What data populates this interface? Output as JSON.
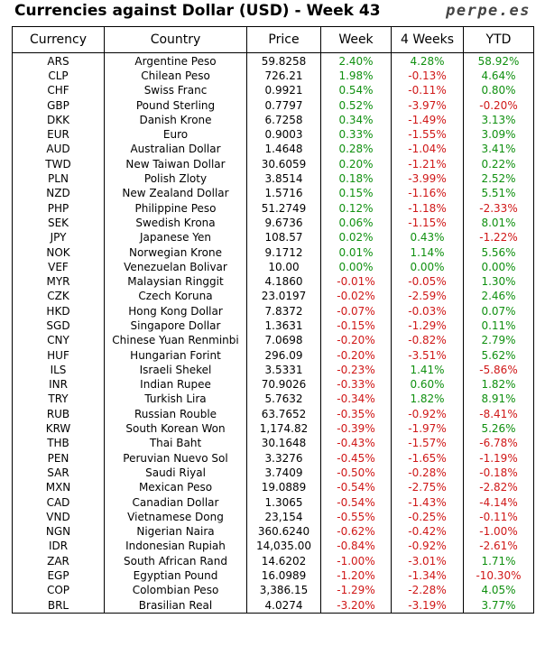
{
  "header": {
    "title": "Currencies against Dollar (USD) - Week 43",
    "brand": "perpe.es"
  },
  "columns": [
    "Currency",
    "Country",
    "Price",
    "Week",
    "4 Weeks",
    "YTD"
  ],
  "rows": [
    [
      "ARS",
      "Argentine Peso",
      "59.8258",
      "2.40%",
      "4.28%",
      "58.92%"
    ],
    [
      "CLP",
      "Chilean Peso",
      "726.21",
      "1.98%",
      "-0.13%",
      "4.64%"
    ],
    [
      "CHF",
      "Swiss Franc",
      "0.9921",
      "0.54%",
      "-0.11%",
      "0.80%"
    ],
    [
      "GBP",
      "Pound Sterling",
      "0.7797",
      "0.52%",
      "-3.97%",
      "-0.20%"
    ],
    [
      "DKK",
      "Danish Krone",
      "6.7258",
      "0.34%",
      "-1.49%",
      "3.13%"
    ],
    [
      "EUR",
      "Euro",
      "0.9003",
      "0.33%",
      "-1.55%",
      "3.09%"
    ],
    [
      "AUD",
      "Australian Dollar",
      "1.4648",
      "0.28%",
      "-1.04%",
      "3.41%"
    ],
    [
      "TWD",
      "New Taiwan Dollar",
      "30.6059",
      "0.20%",
      "-1.21%",
      "0.22%"
    ],
    [
      "PLN",
      "Polish Zloty",
      "3.8514",
      "0.18%",
      "-3.99%",
      "2.52%"
    ],
    [
      "NZD",
      "New Zealand Dollar",
      "1.5716",
      "0.15%",
      "-1.16%",
      "5.51%"
    ],
    [
      "PHP",
      "Philippine Peso",
      "51.2749",
      "0.12%",
      "-1.18%",
      "-2.33%"
    ],
    [
      "SEK",
      "Swedish Krona",
      "9.6736",
      "0.06%",
      "-1.15%",
      "8.01%"
    ],
    [
      "JPY",
      "Japanese Yen",
      "108.57",
      "0.02%",
      "0.43%",
      "-1.22%"
    ],
    [
      "NOK",
      "Norwegian Krone",
      "9.1712",
      "0.01%",
      "1.14%",
      "5.56%"
    ],
    [
      "VEF",
      "Venezuelan Bolivar",
      "10.00",
      "0.00%",
      "0.00%",
      "0.00%"
    ],
    [
      "MYR",
      "Malaysian Ringgit",
      "4.1860",
      "-0.01%",
      "-0.05%",
      "1.30%"
    ],
    [
      "CZK",
      "Czech Koruna",
      "23.0197",
      "-0.02%",
      "-2.59%",
      "2.46%"
    ],
    [
      "HKD",
      "Hong Kong Dollar",
      "7.8372",
      "-0.07%",
      "-0.03%",
      "0.07%"
    ],
    [
      "SGD",
      "Singapore Dollar",
      "1.3631",
      "-0.15%",
      "-1.29%",
      "0.11%"
    ],
    [
      "CNY",
      "Chinese Yuan Renminbi",
      "7.0698",
      "-0.20%",
      "-0.82%",
      "2.79%"
    ],
    [
      "HUF",
      "Hungarian Forint",
      "296.09",
      "-0.20%",
      "-3.51%",
      "5.62%"
    ],
    [
      "ILS",
      "Israeli Shekel",
      "3.5331",
      "-0.23%",
      "1.41%",
      "-5.86%"
    ],
    [
      "INR",
      "Indian Rupee",
      "70.9026",
      "-0.33%",
      "0.60%",
      "1.82%"
    ],
    [
      "TRY",
      "Turkish Lira",
      "5.7632",
      "-0.34%",
      "1.82%",
      "8.91%"
    ],
    [
      "RUB",
      "Russian Rouble",
      "63.7652",
      "-0.35%",
      "-0.92%",
      "-8.41%"
    ],
    [
      "KRW",
      "South Korean Won",
      "1,174.82",
      "-0.39%",
      "-1.97%",
      "5.26%"
    ],
    [
      "THB",
      "Thai Baht",
      "30.1648",
      "-0.43%",
      "-1.57%",
      "-6.78%"
    ],
    [
      "PEN",
      "Peruvian Nuevo Sol",
      "3.3276",
      "-0.45%",
      "-1.65%",
      "-1.19%"
    ],
    [
      "SAR",
      "Saudi Riyal",
      "3.7409",
      "-0.50%",
      "-0.28%",
      "-0.18%"
    ],
    [
      "MXN",
      "Mexican Peso",
      "19.0889",
      "-0.54%",
      "-2.75%",
      "-2.82%"
    ],
    [
      "CAD",
      "Canadian Dollar",
      "1.3065",
      "-0.54%",
      "-1.43%",
      "-4.14%"
    ],
    [
      "VND",
      "Vietnamese Dong",
      "23,154",
      "-0.55%",
      "-0.25%",
      "-0.11%"
    ],
    [
      "NGN",
      "Nigerian Naira",
      "360.6240",
      "-0.62%",
      "-0.42%",
      "-1.00%"
    ],
    [
      "IDR",
      "Indonesian Rupiah",
      "14,035.00",
      "-0.84%",
      "-0.92%",
      "-2.61%"
    ],
    [
      "ZAR",
      "South African Rand",
      "14.6202",
      "-1.00%",
      "-3.01%",
      "1.71%"
    ],
    [
      "EGP",
      "Egyptian Pound",
      "16.0989",
      "-1.20%",
      "-1.34%",
      "-10.30%"
    ],
    [
      "COP",
      "Colombian Peso",
      "3,386.15",
      "-1.29%",
      "-2.28%",
      "4.05%"
    ],
    [
      "BRL",
      "Brasilian Real",
      "4.0274",
      "-3.20%",
      "-3.19%",
      "3.77%"
    ]
  ],
  "colors": {
    "positive": "#109010",
    "negative": "#d01818"
  }
}
